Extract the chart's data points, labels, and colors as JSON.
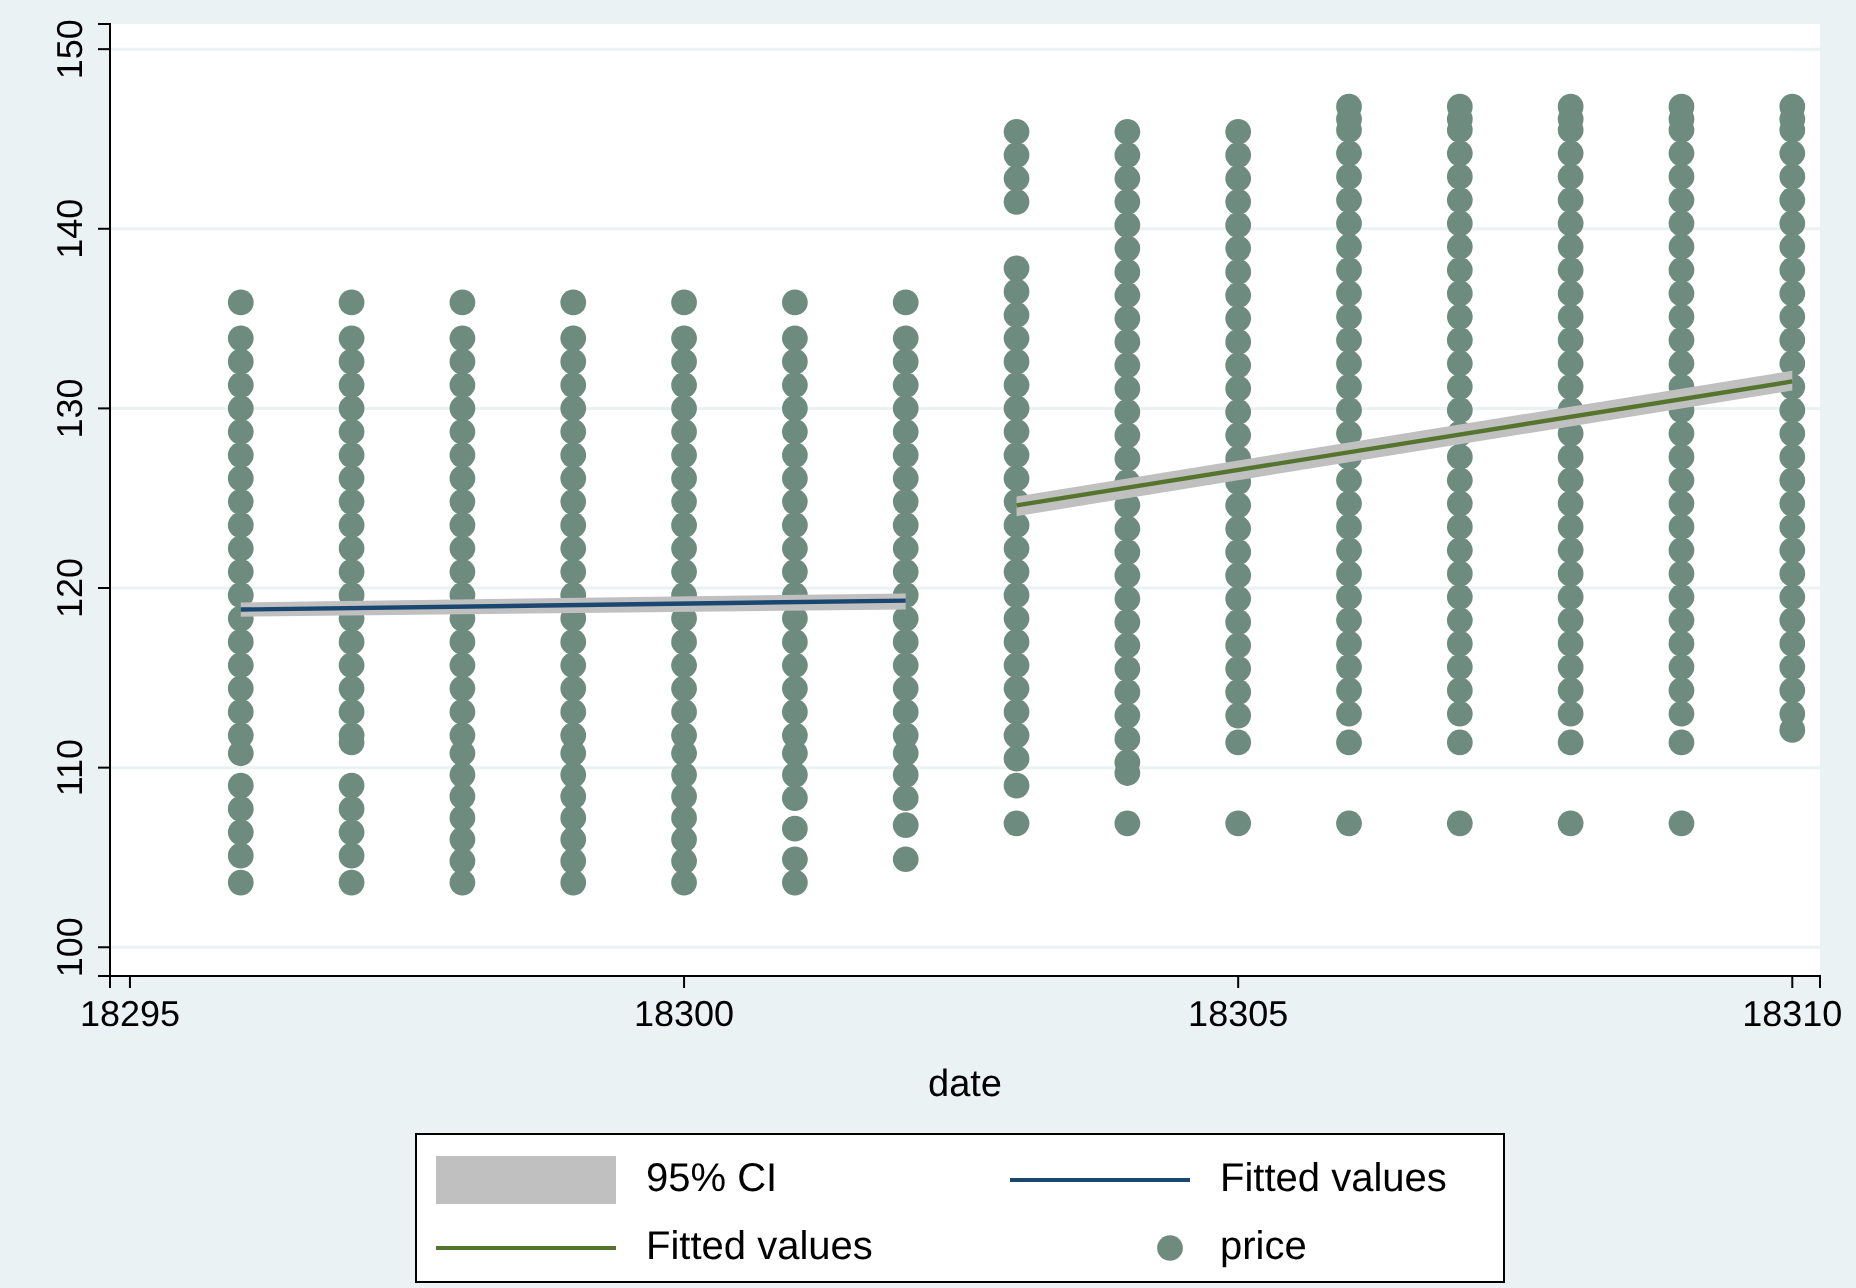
{
  "chart_data": {
    "type": "scatter",
    "xlabel": "date",
    "xlim": [
      18294.82,
      18310.25
    ],
    "ylim": [
      98.4,
      151.4
    ],
    "xticks": [
      18295,
      18300,
      18305,
      18310
    ],
    "yticks": [
      100,
      110,
      120,
      130,
      140,
      150
    ],
    "grid": "y",
    "legend": "bottom",
    "annotations": [
      "95% CI"
    ],
    "series": [
      {
        "name": "Fitted values",
        "type": "line",
        "color": "#1a476f",
        "x": [
          18296,
          18302
        ],
        "values": [
          118.8,
          119.3
        ],
        "lower": [
          118.4,
          118.8
        ],
        "upper": [
          119.2,
          119.7
        ]
      },
      {
        "name": "Fitted values",
        "type": "line",
        "color": "#55752f",
        "x": [
          18303,
          18310
        ],
        "values": [
          124.6,
          131.5
        ],
        "lower": [
          124.0,
          131.0
        ],
        "upper": [
          125.1,
          132.1
        ]
      },
      {
        "name": "price",
        "color": "#6e8b80",
        "marker": "circle",
        "x": [
          18296,
          18296,
          18296,
          18296,
          18296,
          18296,
          18296,
          18296,
          18296,
          18296,
          18296,
          18296,
          18296,
          18296,
          18296,
          18296,
          18296,
          18296,
          18296,
          18296,
          18296,
          18296,
          18296,
          18296,
          18296,
          18297,
          18297,
          18297,
          18297,
          18297,
          18297,
          18297,
          18297,
          18297,
          18297,
          18297,
          18297,
          18297,
          18297,
          18297,
          18297,
          18297,
          18297,
          18297,
          18297,
          18297,
          18297,
          18297,
          18297,
          18297,
          18298,
          18298,
          18298,
          18298,
          18298,
          18298,
          18298,
          18298,
          18298,
          18298,
          18298,
          18298,
          18298,
          18298,
          18298,
          18298,
          18298,
          18298,
          18298,
          18298,
          18298,
          18298,
          18298,
          18298,
          18298,
          18298,
          18299,
          18299,
          18299,
          18299,
          18299,
          18299,
          18299,
          18299,
          18299,
          18299,
          18299,
          18299,
          18299,
          18299,
          18299,
          18299,
          18299,
          18299,
          18299,
          18299,
          18299,
          18299,
          18299,
          18299,
          18299,
          18299,
          18300,
          18300,
          18300,
          18300,
          18300,
          18300,
          18300,
          18300,
          18300,
          18300,
          18300,
          18300,
          18300,
          18300,
          18300,
          18300,
          18300,
          18300,
          18300,
          18300,
          18300,
          18300,
          18300,
          18300,
          18300,
          18300,
          18301,
          18301,
          18301,
          18301,
          18301,
          18301,
          18301,
          18301,
          18301,
          18301,
          18301,
          18301,
          18301,
          18301,
          18301,
          18301,
          18301,
          18301,
          18301,
          18301,
          18301,
          18301,
          18301,
          18301,
          18301,
          18302,
          18302,
          18302,
          18302,
          18302,
          18302,
          18302,
          18302,
          18302,
          18302,
          18302,
          18302,
          18302,
          18302,
          18302,
          18302,
          18302,
          18302,
          18302,
          18302,
          18302,
          18302,
          18302,
          18302,
          18303,
          18303,
          18303,
          18303,
          18303,
          18303,
          18303,
          18303,
          18303,
          18303,
          18303,
          18303,
          18303,
          18303,
          18303,
          18303,
          18303,
          18303,
          18303,
          18303,
          18303,
          18303,
          18303,
          18303,
          18303,
          18303,
          18303,
          18303,
          18304,
          18304,
          18304,
          18304,
          18304,
          18304,
          18304,
          18304,
          18304,
          18304,
          18304,
          18304,
          18304,
          18304,
          18304,
          18304,
          18304,
          18304,
          18304,
          18304,
          18304,
          18304,
          18304,
          18304,
          18304,
          18304,
          18304,
          18304,
          18304,
          18304,
          18305,
          18305,
          18305,
          18305,
          18305,
          18305,
          18305,
          18305,
          18305,
          18305,
          18305,
          18305,
          18305,
          18305,
          18305,
          18305,
          18305,
          18305,
          18305,
          18305,
          18305,
          18305,
          18305,
          18305,
          18305,
          18305,
          18305,
          18305,
          18306,
          18306,
          18306,
          18306,
          18306,
          18306,
          18306,
          18306,
          18306,
          18306,
          18306,
          18306,
          18306,
          18306,
          18306,
          18306,
          18306,
          18306,
          18306,
          18306,
          18306,
          18306,
          18306,
          18306,
          18306,
          18306,
          18306,
          18306,
          18306,
          18306,
          18307,
          18307,
          18307,
          18307,
          18307,
          18307,
          18307,
          18307,
          18307,
          18307,
          18307,
          18307,
          18307,
          18307,
          18307,
          18307,
          18307,
          18307,
          18307,
          18307,
          18307,
          18307,
          18307,
          18307,
          18307,
          18307,
          18307,
          18307,
          18307,
          18307,
          18308,
          18308,
          18308,
          18308,
          18308,
          18308,
          18308,
          18308,
          18308,
          18308,
          18308,
          18308,
          18308,
          18308,
          18308,
          18308,
          18308,
          18308,
          18308,
          18308,
          18308,
          18308,
          18308,
          18308,
          18308,
          18308,
          18308,
          18308,
          18308,
          18308,
          18309,
          18309,
          18309,
          18309,
          18309,
          18309,
          18309,
          18309,
          18309,
          18309,
          18309,
          18309,
          18309,
          18309,
          18309,
          18309,
          18309,
          18309,
          18309,
          18309,
          18309,
          18309,
          18309,
          18309,
          18309,
          18309,
          18309,
          18309,
          18309,
          18309,
          18310,
          18310,
          18310,
          18310,
          18310,
          18310,
          18310,
          18310,
          18310,
          18310,
          18310,
          18310,
          18310,
          18310,
          18310,
          18310,
          18310,
          18310,
          18310,
          18310,
          18310,
          18310,
          18310,
          18310,
          18310,
          18310,
          18310,
          18310,
          18310
        ],
        "values": [
          135.9,
          133.9,
          132.6,
          131.3,
          130,
          128.7,
          127.4,
          126.1,
          124.8,
          123.5,
          122.2,
          120.9,
          119.6,
          118.3,
          117,
          115.7,
          114.4,
          113.1,
          111.8,
          110.8,
          109.0,
          107.7,
          106.4,
          105.1,
          103.6,
          135.9,
          133.9,
          132.6,
          131.3,
          130,
          128.7,
          127.4,
          126.1,
          124.8,
          123.5,
          122.2,
          120.9,
          119.6,
          118.3,
          117,
          115.7,
          114.4,
          113.1,
          111.8,
          111.4,
          109.0,
          107.7,
          106.4,
          105.1,
          103.6,
          135.9,
          133.9,
          132.6,
          131.3,
          130,
          128.7,
          127.4,
          126.1,
          124.8,
          123.5,
          122.2,
          120.9,
          119.6,
          118.3,
          117,
          115.7,
          114.4,
          113.1,
          111.8,
          110.8,
          109.6,
          108.4,
          107.2,
          106,
          104.8,
          103.6,
          135.9,
          133.9,
          132.6,
          131.3,
          130,
          128.7,
          127.4,
          126.1,
          124.8,
          123.5,
          122.2,
          120.9,
          119.6,
          118.3,
          117,
          115.7,
          114.4,
          113.1,
          111.8,
          110.8,
          109.6,
          108.4,
          107.2,
          106,
          104.8,
          103.6,
          135.9,
          133.9,
          132.6,
          131.3,
          130,
          128.7,
          127.4,
          126.1,
          124.8,
          123.5,
          122.2,
          120.9,
          119.6,
          118.3,
          117,
          115.7,
          114.4,
          113.1,
          111.8,
          110.8,
          109.6,
          108.4,
          107.2,
          106,
          104.8,
          103.6,
          135.9,
          133.9,
          132.6,
          131.3,
          130,
          128.7,
          127.4,
          126.1,
          124.8,
          123.5,
          122.2,
          120.9,
          119.6,
          118.3,
          117,
          115.7,
          114.4,
          113.1,
          111.8,
          110.8,
          109.6,
          108.3,
          106.6,
          104.9,
          103.6,
          135.9,
          133.9,
          132.6,
          131.3,
          130,
          128.7,
          127.4,
          126.1,
          124.8,
          123.5,
          122.2,
          120.9,
          119.6,
          118.3,
          117,
          115.7,
          114.4,
          113.1,
          111.8,
          110.8,
          109.6,
          108.3,
          106.8,
          104.9,
          145.4,
          144.1,
          142.8,
          141.5,
          137.8,
          136.5,
          135.2,
          133.9,
          132.6,
          131.3,
          130,
          128.7,
          127.4,
          126.1,
          124.8,
          123.5,
          122.2,
          120.9,
          119.6,
          118.3,
          117,
          115.7,
          114.4,
          113.1,
          111.8,
          110.5,
          109.0,
          106.9,
          145.4,
          144.1,
          142.8,
          141.5,
          140.2,
          138.9,
          137.6,
          136.3,
          135,
          133.7,
          132.4,
          131.1,
          129.8,
          128.5,
          127.2,
          125.9,
          124.6,
          123.3,
          122,
          120.7,
          119.4,
          118.1,
          116.8,
          115.5,
          114.2,
          112.9,
          111.6,
          110.3,
          109.7,
          106.9,
          145.4,
          144.1,
          142.8,
          141.5,
          140.2,
          138.9,
          137.6,
          136.3,
          135,
          133.7,
          132.4,
          131.1,
          129.8,
          128.5,
          127.2,
          125.9,
          124.6,
          123.3,
          122,
          120.7,
          119.4,
          118.1,
          116.8,
          115.5,
          114.2,
          112.9,
          111.4,
          106.9,
          146.8,
          145.5,
          144.2,
          142.9,
          141.6,
          140.3,
          139,
          137.7,
          136.4,
          135.1,
          133.8,
          132.5,
          131.2,
          129.9,
          128.6,
          127.3,
          126,
          124.7,
          123.4,
          122.1,
          120.8,
          119.5,
          118.2,
          116.9,
          115.6,
          114.3,
          113,
          111.4,
          106.9,
          146.1,
          146.8,
          145.5,
          144.2,
          142.9,
          141.6,
          140.3,
          139,
          137.7,
          136.4,
          135.1,
          133.8,
          132.5,
          131.2,
          129.9,
          128.6,
          127.3,
          126,
          124.7,
          123.4,
          122.1,
          120.8,
          119.5,
          118.2,
          116.9,
          115.6,
          114.3,
          113,
          111.4,
          106.9,
          146.1,
          146.8,
          145.5,
          144.2,
          142.9,
          141.6,
          140.3,
          139,
          137.7,
          136.4,
          135.1,
          133.8,
          132.5,
          131.2,
          129.9,
          128.6,
          127.3,
          126,
          124.7,
          123.4,
          122.1,
          120.8,
          119.5,
          118.2,
          116.9,
          115.6,
          114.3,
          113,
          111.4,
          106.9,
          146.1,
          146.8,
          145.5,
          144.2,
          142.9,
          141.6,
          140.3,
          139,
          137.7,
          136.4,
          135.1,
          133.8,
          132.5,
          131.2,
          129.9,
          128.6,
          127.3,
          126,
          124.7,
          123.4,
          122.1,
          120.8,
          119.5,
          118.2,
          116.9,
          115.6,
          114.3,
          113,
          111.4,
          106.9,
          146.1,
          146.8,
          145.5,
          144.2,
          142.9,
          141.6,
          140.3,
          139,
          137.7,
          136.4,
          135.1,
          133.8,
          132.5,
          131.2,
          129.9,
          128.6,
          127.3,
          126,
          124.7,
          123.4,
          122.1,
          120.8,
          119.5,
          118.2,
          116.9,
          115.6,
          114.3,
          113,
          112.1,
          146.1
        ]
      }
    ]
  }
}
